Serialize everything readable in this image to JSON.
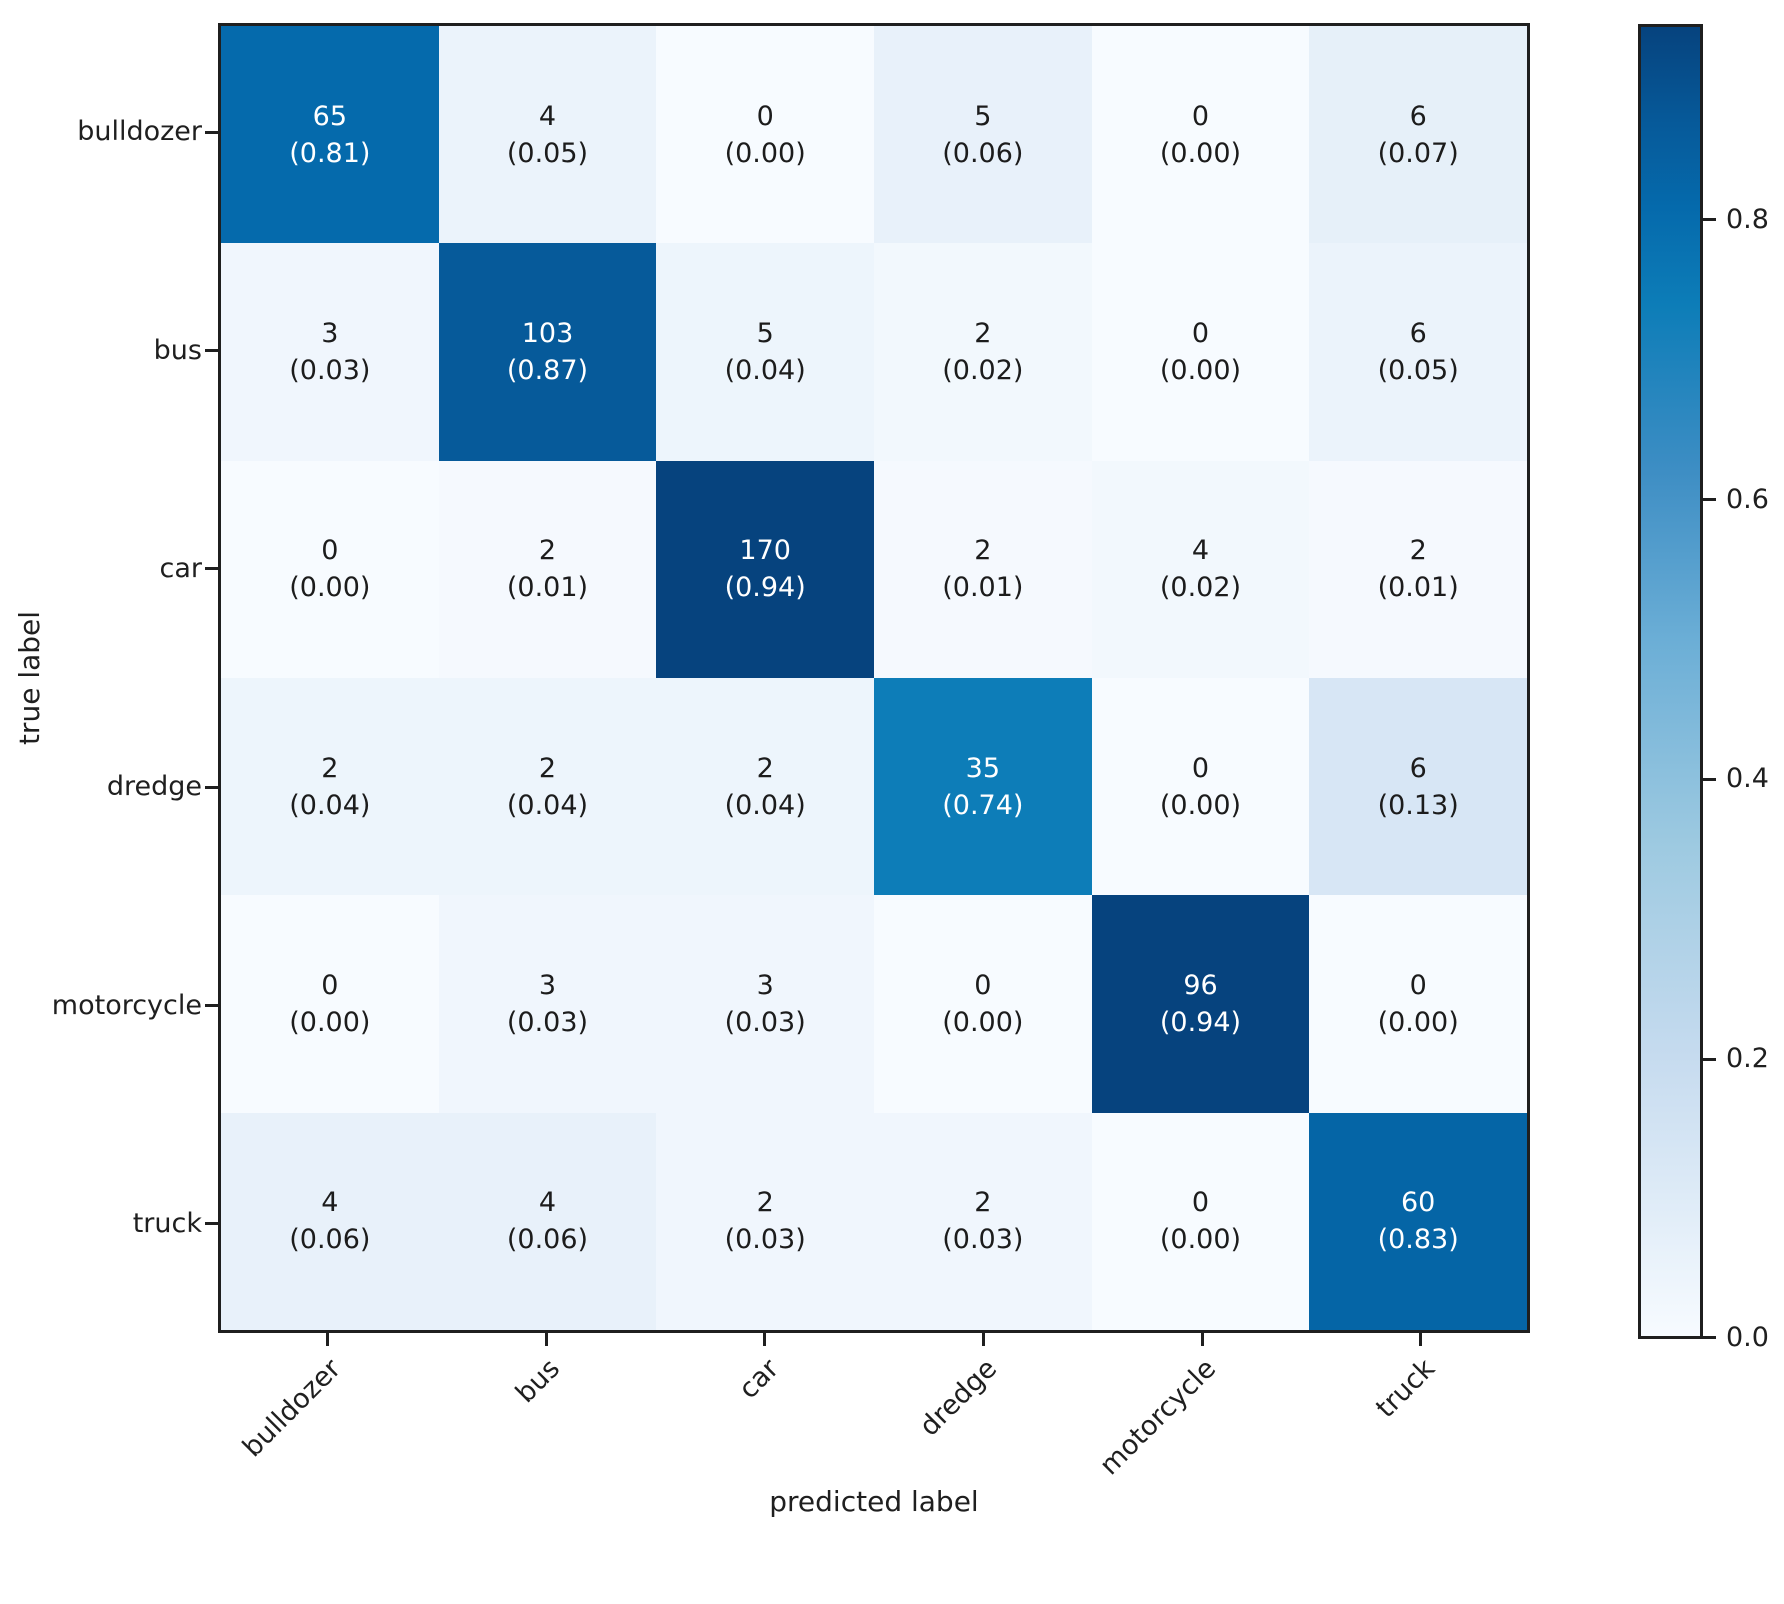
{
  "figure": {
    "background": "#ffffff",
    "axis_color": "#1f1f1f"
  },
  "chart_data": {
    "type": "heatmap",
    "title": "",
    "xlabel": "predicted label",
    "ylabel": "true label",
    "classes": [
      "bulldozer",
      "bus",
      "car",
      "dredge",
      "motorcycle",
      "truck"
    ],
    "counts": [
      [
        65,
        4,
        0,
        5,
        0,
        6
      ],
      [
        3,
        103,
        5,
        2,
        0,
        6
      ],
      [
        0,
        2,
        170,
        2,
        4,
        2
      ],
      [
        2,
        2,
        2,
        35,
        0,
        6
      ],
      [
        0,
        3,
        3,
        0,
        96,
        0
      ],
      [
        4,
        4,
        2,
        2,
        0,
        60
      ]
    ],
    "proportions": [
      [
        0.81,
        0.05,
        0.0,
        0.06,
        0.0,
        0.07
      ],
      [
        0.03,
        0.87,
        0.04,
        0.02,
        0.0,
        0.05
      ],
      [
        0.0,
        0.01,
        0.94,
        0.01,
        0.02,
        0.01
      ],
      [
        0.04,
        0.04,
        0.04,
        0.74,
        0.0,
        0.13
      ],
      [
        0.0,
        0.03,
        0.03,
        0.0,
        0.94,
        0.0
      ],
      [
        0.06,
        0.06,
        0.03,
        0.03,
        0.0,
        0.83
      ]
    ],
    "colorbar": {
      "tick_labels": [
        "0.8",
        "0.6",
        "0.4",
        "0.2",
        "0.0"
      ],
      "tick_values": [
        0.8,
        0.6,
        0.4,
        0.2,
        0.0
      ],
      "vmin": 0.0,
      "vmax": 0.94
    },
    "colormap": {
      "name": "Blues",
      "anchors": [
        [
          0.0,
          "#f7fbff"
        ],
        [
          0.1,
          "#deebf7"
        ],
        [
          0.2,
          "#c6dbef"
        ],
        [
          0.35,
          "#9ecae1"
        ],
        [
          0.5,
          "#6baed6"
        ],
        [
          0.62,
          "#3e8ec4"
        ],
        [
          0.74,
          "#0d7db8"
        ],
        [
          0.81,
          "#056aac"
        ],
        [
          0.87,
          "#065a9a"
        ],
        [
          0.94,
          "#06437e"
        ]
      ]
    },
    "text_colors": {
      "light_cell": "#1c1c1c",
      "dark_cell": "#ffffff",
      "dark_threshold": 0.5
    }
  }
}
